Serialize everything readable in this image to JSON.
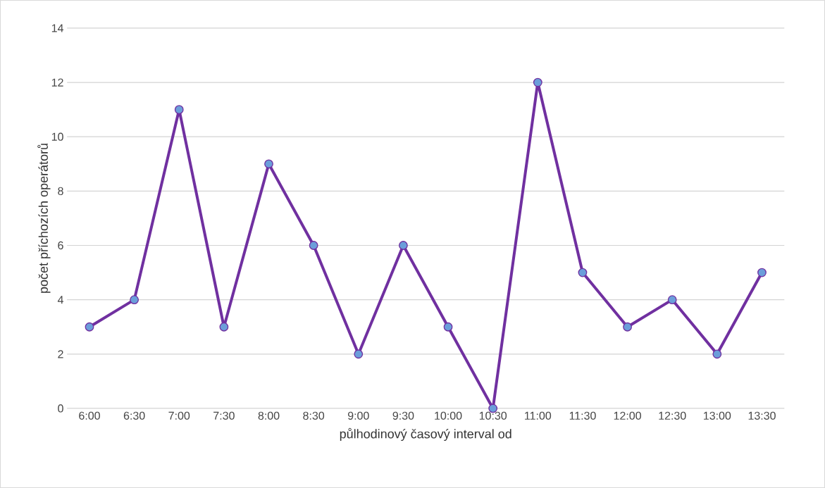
{
  "chart_data": {
    "type": "line",
    "xlabel": "půlhodinový časový interval od",
    "ylabel": "počet příchozích operátorů",
    "categories": [
      "6:00",
      "6:30",
      "7:00",
      "7:30",
      "8:00",
      "8:30",
      "9:00",
      "9:30",
      "10:00",
      "10:30",
      "11:00",
      "11:30",
      "12:00",
      "12:30",
      "13:00",
      "13:30"
    ],
    "series": [
      {
        "color": "#7030a0",
        "values": [
          3,
          4,
          11,
          3,
          9,
          6,
          2,
          6,
          3,
          0,
          12,
          5,
          3,
          4,
          2,
          5
        ]
      }
    ],
    "ylim": [
      0,
      14
    ],
    "yticks": [
      0,
      2,
      4,
      6,
      8,
      10,
      12,
      14
    ],
    "grid": "y",
    "marker": "circle",
    "line_style": "solid"
  }
}
